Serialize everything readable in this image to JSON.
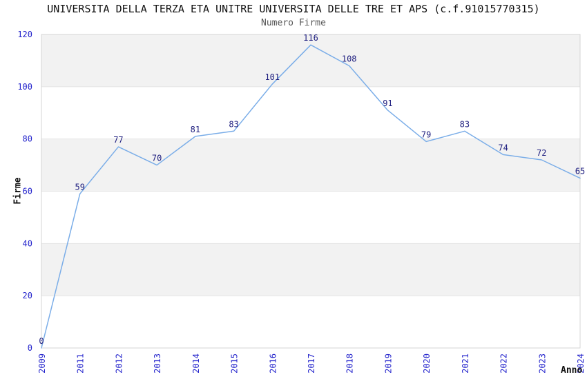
{
  "chart_data": {
    "type": "line",
    "title": "UNIVERSITA DELLA TERZA ETA UNITRE UNIVERSITA DELLE TRE ET APS (c.f.91015770315)",
    "subtitle": "Numero Firme",
    "xlabel": "Anno",
    "ylabel": "Firme",
    "categories": [
      "2009",
      "2011",
      "2012",
      "2013",
      "2014",
      "2015",
      "2016",
      "2017",
      "2018",
      "2019",
      "2020",
      "2021",
      "2022",
      "2023",
      "2024"
    ],
    "values": [
      0,
      59,
      77,
      70,
      81,
      83,
      101,
      116,
      108,
      91,
      79,
      83,
      74,
      72,
      65
    ],
    "ylim": [
      0,
      120
    ],
    "ytick_step": 20,
    "yticks": [
      0,
      20,
      40,
      60,
      80,
      100,
      120
    ],
    "grid": "alternating-horizontal-bands",
    "legend_position": "none",
    "data_labels_shown": true,
    "marker": "none",
    "colors": {
      "line": "#7aade8",
      "tick_label": "#2424cc",
      "data_label": "#202080",
      "band_fill": "#f2f2f2",
      "gridline": "#e4e4e4",
      "plot_border": "#d4d4d4",
      "title_text": "#111111",
      "subtitle_text": "#555555",
      "axis_title_text": "#111111",
      "background": "#ffffff"
    }
  }
}
